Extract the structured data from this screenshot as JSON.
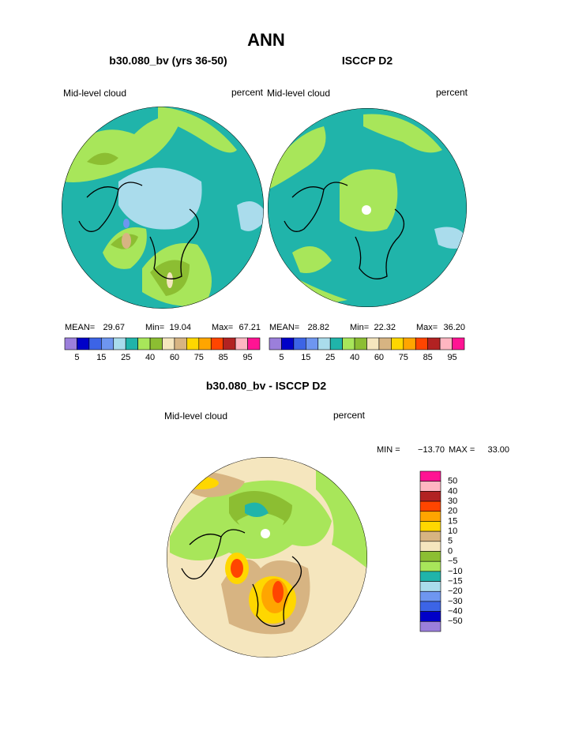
{
  "title": "ANN",
  "panels": [
    {
      "title": "b30.080_bv (yrs 36-50)",
      "left_label": "Mid-level cloud",
      "right_label": "percent",
      "stats": [
        {
          "label": "MEAN=",
          "value": 29.67
        },
        {
          "label": "Min=",
          "value": 19.04
        },
        {
          "label": "Max=",
          "value": 67.21
        }
      ],
      "colorbar": {
        "colors": [
          "#9b7fdb",
          "#0000c8",
          "#3c64e6",
          "#6e96f0",
          "#aadcec",
          "#20b4aa",
          "#a8e65a",
          "#8cbe32",
          "#f5e6be",
          "#d7b482",
          "#ffd700",
          "#ffa500",
          "#ff4500",
          "#b22222",
          "#ffb6c1",
          "#ff1493"
        ],
        "labels": [
          5,
          15,
          25,
          40,
          60,
          75,
          85,
          95
        ]
      }
    },
    {
      "title": "ISCCP D2",
      "left_label": "Mid-level cloud",
      "right_label": "percent",
      "stats": [
        {
          "label": "MEAN=",
          "value": 28.82
        },
        {
          "label": "Min=",
          "value": 22.32
        },
        {
          "label": "Max=",
          "value": {
            "value": 36.2,
            "label": "36.20"
          }
        }
      ],
      "colorbar": {
        "colors": [
          "#9b7fdb",
          "#0000c8",
          "#3c64e6",
          "#6e96f0",
          "#aadcec",
          "#20b4aa",
          "#a8e65a",
          "#8cbe32",
          "#f5e6be",
          "#d7b482",
          "#ffd700",
          "#ffa500",
          "#ff4500",
          "#b22222",
          "#ffb6c1",
          "#ff1493"
        ],
        "labels": [
          5,
          15,
          25,
          40,
          60,
          75,
          85,
          95
        ]
      }
    }
  ],
  "difference": {
    "title": "b30.080_bv - ISCCP D2",
    "left_label": "Mid-level cloud",
    "right_label": "percent",
    "stats": [
      {
        "label": "MIN =",
        "value": {
          "value": -13.7,
          "label": "−13.70"
        }
      },
      {
        "label": "MAX =",
        "value": {
          "value": 33,
          "label": "33.00"
        }
      }
    ],
    "colorbar": {
      "colors": [
        "#ff1493",
        "#ffb6c1",
        "#b22222",
        "#ff4500",
        "#ffa500",
        "#ffd700",
        "#d7b482",
        "#f5e6be",
        "#8cbe32",
        "#a8e65a",
        "#20b4aa",
        "#aadcec",
        "#6e96f0",
        "#3c64e6",
        "#0000c8",
        "#9b7fdb"
      ],
      "labels": [
        50,
        40,
        30,
        20,
        15,
        10,
        5,
        0,
        {
          "value": -5,
          "label": "−5"
        },
        {
          "value": -10,
          "label": "−10"
        },
        {
          "value": -15,
          "label": "−15"
        },
        {
          "value": -20,
          "label": "−20"
        },
        {
          "value": -30,
          "label": "−30"
        },
        {
          "value": -40,
          "label": "−40"
        },
        {
          "value": -50,
          "label": "−50"
        }
      ]
    }
  }
}
